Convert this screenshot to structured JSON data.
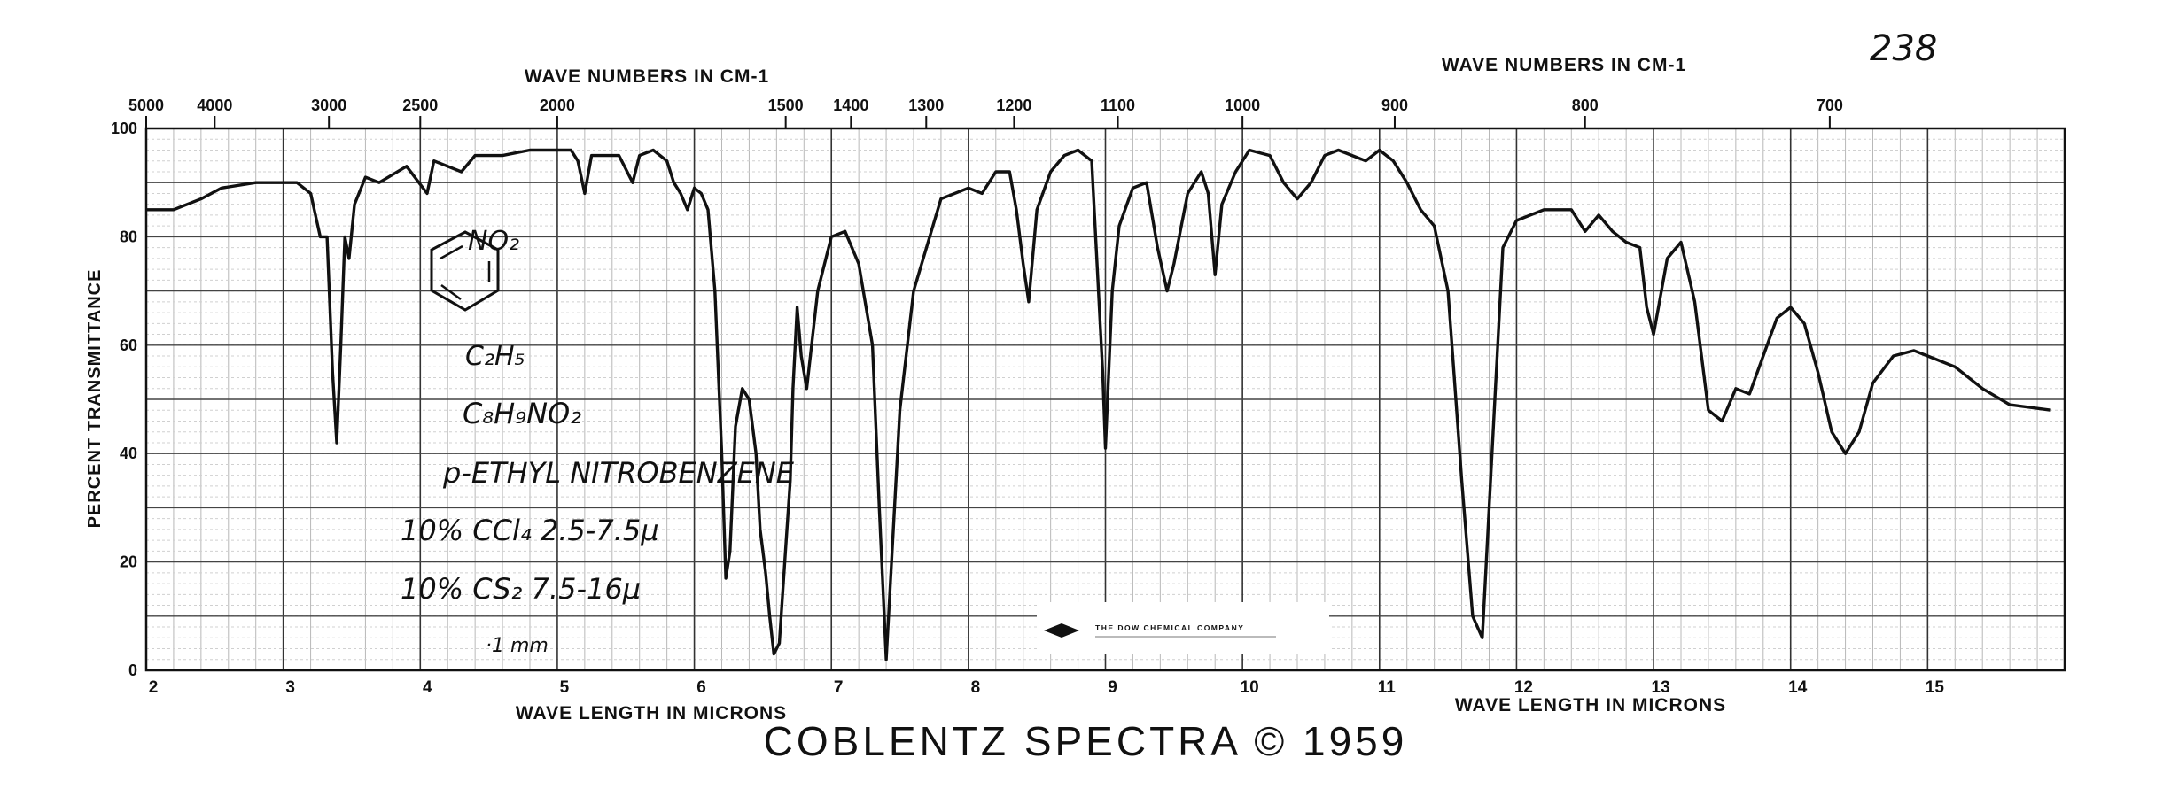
{
  "page": {
    "caption": "COBLENTZ SPECTRA © 1959",
    "page_number": "238"
  },
  "chart_data": {
    "type": "line",
    "title": "",
    "xlabel": "WAVE LENGTH IN MICRONS",
    "ylabel": "PERCENT TRANSMITTANCE",
    "x2label": "WAVE NUMBERS IN CM-1",
    "xlim": [
      2,
      16
    ],
    "ylim": [
      0,
      100
    ],
    "grid": true,
    "legend": "none",
    "line_color": "#111111",
    "micron_ticks": [
      "2",
      "3",
      "4",
      "5",
      "6",
      "7",
      "8",
      "9",
      "10",
      "11",
      "12",
      "13",
      "14",
      "15"
    ],
    "y_ticks": [
      "0",
      "20",
      "40",
      "60",
      "80",
      "100"
    ],
    "wavenumber_ticks": [
      {
        "label": "5000",
        "value": 5000
      },
      {
        "label": "4000",
        "value": 4000
      },
      {
        "label": "3000",
        "value": 3000
      },
      {
        "label": "2500",
        "value": 2500
      },
      {
        "label": "2000",
        "value": 2000
      },
      {
        "label": "1500",
        "value": 1500
      },
      {
        "label": "1400",
        "value": 1400
      },
      {
        "label": "1300",
        "value": 1300
      },
      {
        "label": "1200",
        "value": 1200
      },
      {
        "label": "1100",
        "value": 1100
      },
      {
        "label": "1000",
        "value": 1000
      },
      {
        "label": "900",
        "value": 900
      },
      {
        "label": "800",
        "value": 800
      },
      {
        "label": "700",
        "value": 700
      }
    ],
    "series": [
      {
        "points": [
          [
            2.0,
            85
          ],
          [
            2.2,
            85
          ],
          [
            2.4,
            87
          ],
          [
            2.55,
            89
          ],
          [
            2.8,
            90
          ],
          [
            3.1,
            90
          ],
          [
            3.2,
            88
          ],
          [
            3.27,
            80
          ],
          [
            3.32,
            80
          ],
          [
            3.36,
            55
          ],
          [
            3.39,
            42
          ],
          [
            3.42,
            60
          ],
          [
            3.45,
            80
          ],
          [
            3.48,
            76
          ],
          [
            3.52,
            86
          ],
          [
            3.6,
            91
          ],
          [
            3.7,
            90
          ],
          [
            3.9,
            93
          ],
          [
            4.05,
            88
          ],
          [
            4.1,
            94
          ],
          [
            4.3,
            92
          ],
          [
            4.4,
            95
          ],
          [
            4.6,
            95
          ],
          [
            4.8,
            96
          ],
          [
            5.0,
            96
          ],
          [
            5.1,
            96
          ],
          [
            5.15,
            94
          ],
          [
            5.2,
            88
          ],
          [
            5.25,
            95
          ],
          [
            5.35,
            95
          ],
          [
            5.45,
            95
          ],
          [
            5.55,
            90
          ],
          [
            5.6,
            95
          ],
          [
            5.7,
            96
          ],
          [
            5.8,
            94
          ],
          [
            5.85,
            90
          ],
          [
            5.9,
            88
          ],
          [
            5.95,
            85
          ],
          [
            6.0,
            89
          ],
          [
            6.05,
            88
          ],
          [
            6.1,
            85
          ],
          [
            6.15,
            70
          ],
          [
            6.2,
            40
          ],
          [
            6.23,
            17
          ],
          [
            6.26,
            22
          ],
          [
            6.3,
            45
          ],
          [
            6.35,
            52
          ],
          [
            6.4,
            50
          ],
          [
            6.45,
            40
          ],
          [
            6.48,
            26
          ],
          [
            6.52,
            18
          ],
          [
            6.55,
            10
          ],
          [
            6.58,
            3
          ],
          [
            6.62,
            5
          ],
          [
            6.66,
            20
          ],
          [
            6.7,
            35
          ],
          [
            6.72,
            52
          ],
          [
            6.75,
            67
          ],
          [
            6.78,
            58
          ],
          [
            6.82,
            52
          ],
          [
            6.9,
            70
          ],
          [
            7.0,
            80
          ],
          [
            7.1,
            81
          ],
          [
            7.2,
            75
          ],
          [
            7.3,
            60
          ],
          [
            7.35,
            30
          ],
          [
            7.4,
            2
          ],
          [
            7.45,
            25
          ],
          [
            7.5,
            48
          ],
          [
            7.6,
            70
          ],
          [
            7.8,
            87
          ],
          [
            8.0,
            89
          ],
          [
            8.1,
            88
          ],
          [
            8.2,
            92
          ],
          [
            8.3,
            92
          ],
          [
            8.35,
            85
          ],
          [
            8.4,
            75
          ],
          [
            8.44,
            68
          ],
          [
            8.5,
            85
          ],
          [
            8.6,
            92
          ],
          [
            8.7,
            95
          ],
          [
            8.8,
            96
          ],
          [
            8.9,
            94
          ],
          [
            8.98,
            55
          ],
          [
            9.0,
            41
          ],
          [
            9.05,
            70
          ],
          [
            9.1,
            82
          ],
          [
            9.2,
            89
          ],
          [
            9.3,
            90
          ],
          [
            9.38,
            78
          ],
          [
            9.45,
            70
          ],
          [
            9.5,
            75
          ],
          [
            9.6,
            88
          ],
          [
            9.7,
            92
          ],
          [
            9.75,
            88
          ],
          [
            9.8,
            73
          ],
          [
            9.85,
            86
          ],
          [
            9.95,
            92
          ],
          [
            10.05,
            96
          ],
          [
            10.2,
            95
          ],
          [
            10.3,
            90
          ],
          [
            10.4,
            87
          ],
          [
            10.5,
            90
          ],
          [
            10.6,
            95
          ],
          [
            10.7,
            96
          ],
          [
            10.9,
            94
          ],
          [
            11.0,
            96
          ],
          [
            11.1,
            94
          ],
          [
            11.2,
            90
          ],
          [
            11.3,
            85
          ],
          [
            11.4,
            82
          ],
          [
            11.5,
            70
          ],
          [
            11.6,
            35
          ],
          [
            11.68,
            10
          ],
          [
            11.75,
            6
          ],
          [
            11.8,
            30
          ],
          [
            11.9,
            78
          ],
          [
            12.0,
            83
          ],
          [
            12.2,
            85
          ],
          [
            12.4,
            85
          ],
          [
            12.5,
            81
          ],
          [
            12.6,
            84
          ],
          [
            12.7,
            81
          ],
          [
            12.8,
            79
          ],
          [
            12.9,
            78
          ],
          [
            12.95,
            67
          ],
          [
            13.0,
            62
          ],
          [
            13.1,
            76
          ],
          [
            13.2,
            79
          ],
          [
            13.3,
            68
          ],
          [
            13.4,
            48
          ],
          [
            13.5,
            46
          ],
          [
            13.6,
            52
          ],
          [
            13.7,
            51
          ],
          [
            13.8,
            58
          ],
          [
            13.9,
            65
          ],
          [
            14.0,
            67
          ],
          [
            14.1,
            64
          ],
          [
            14.2,
            55
          ],
          [
            14.3,
            44
          ],
          [
            14.4,
            40
          ],
          [
            14.5,
            44
          ],
          [
            14.6,
            53
          ],
          [
            14.75,
            58
          ],
          [
            14.9,
            59
          ],
          [
            15.0,
            58
          ],
          [
            15.2,
            56
          ],
          [
            15.4,
            52
          ],
          [
            15.6,
            49
          ],
          [
            15.9,
            48
          ]
        ]
      }
    ]
  },
  "annotations": {
    "substituent_top": "NO₂",
    "substituent_bottom": "C₂H₅",
    "formula": "C₈H₉NO₂",
    "compound_name": "p-ETHYL NITROBENZENE",
    "solvent_1": "10% CCl₄  2.5-7.5μ",
    "solvent_2": "10% CS₂  7.5-16μ",
    "cell_path": "·1 mm",
    "label_company": "THE DOW CHEMICAL COMPANY"
  }
}
